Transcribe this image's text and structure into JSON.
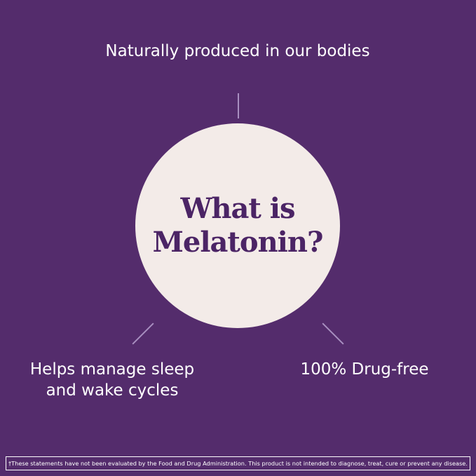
{
  "title": "What is Melatonin?",
  "facts": {
    "top": "Naturally produced in our bodies",
    "left": "Helps manage sleep and wake cycles",
    "right": "100% Drug-free"
  },
  "disclaimer": "†These statements have not been evaluated by the Food and Drug Administration. This product is not intended to diagnose, treat, cure or prevent any disease.",
  "colors": {
    "background": "#542c6c",
    "circle": "#f3ebe8",
    "title": "#4b2465"
  }
}
